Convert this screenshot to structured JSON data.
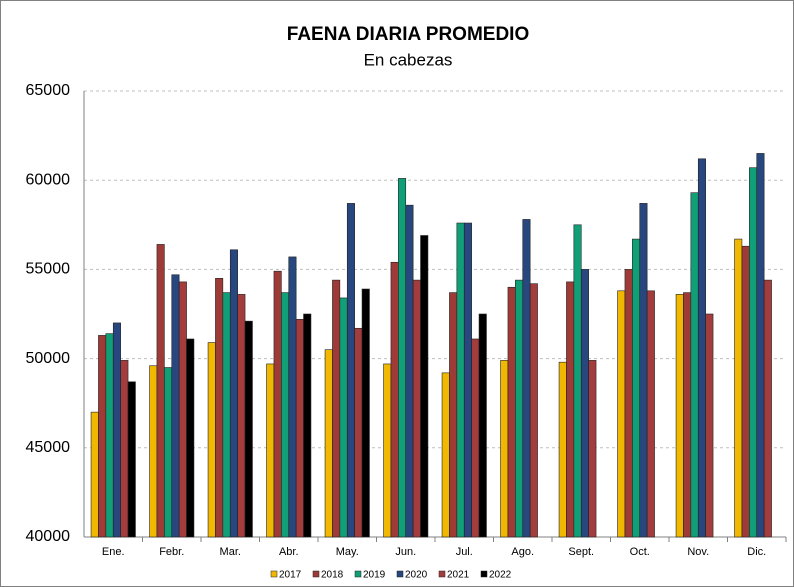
{
  "chart_data": {
    "type": "bar",
    "title": "FAENA DIARIA PROMEDIO",
    "subtitle": "En cabezas",
    "categories": [
      "Ene.",
      "Febr.",
      "Mar.",
      "Abr.",
      "May.",
      "Jun.",
      "Jul.",
      "Ago.",
      "Sept.",
      "Oct.",
      "Nov.",
      "Dic."
    ],
    "series": [
      {
        "name": "2017",
        "color": "#f0b800",
        "values": [
          47000,
          49600,
          50900,
          49700,
          50500,
          49700,
          49200,
          49900,
          49800,
          53800,
          53600,
          56700
        ]
      },
      {
        "name": "2018",
        "color": "#9e3b36",
        "values": [
          51300,
          56400,
          54500,
          54900,
          54400,
          55400,
          53700,
          54000,
          54300,
          55000,
          53700,
          56300
        ]
      },
      {
        "name": "2019",
        "color": "#109f76",
        "values": [
          51400,
          49500,
          53700,
          53700,
          53400,
          60100,
          57600,
          54400,
          57500,
          56700,
          59300,
          60700
        ]
      },
      {
        "name": "2020",
        "color": "#27477e",
        "values": [
          52000,
          54700,
          56100,
          55700,
          58700,
          58600,
          57600,
          57800,
          55000,
          58700,
          61200,
          61500
        ]
      },
      {
        "name": "2021",
        "color": "#a33c3c",
        "values": [
          49900,
          54300,
          53600,
          52200,
          51700,
          54400,
          51100,
          54200,
          49900,
          53800,
          52500,
          54400
        ]
      },
      {
        "name": "2022",
        "color": "#000000",
        "values": [
          48700,
          51100,
          52100,
          52500,
          53900,
          56900,
          52500,
          null,
          null,
          null,
          null,
          null
        ]
      }
    ],
    "ylim": [
      40000,
      65000
    ],
    "yticks": [
      40000,
      45000,
      50000,
      55000,
      60000,
      65000
    ],
    "grid": true
  }
}
